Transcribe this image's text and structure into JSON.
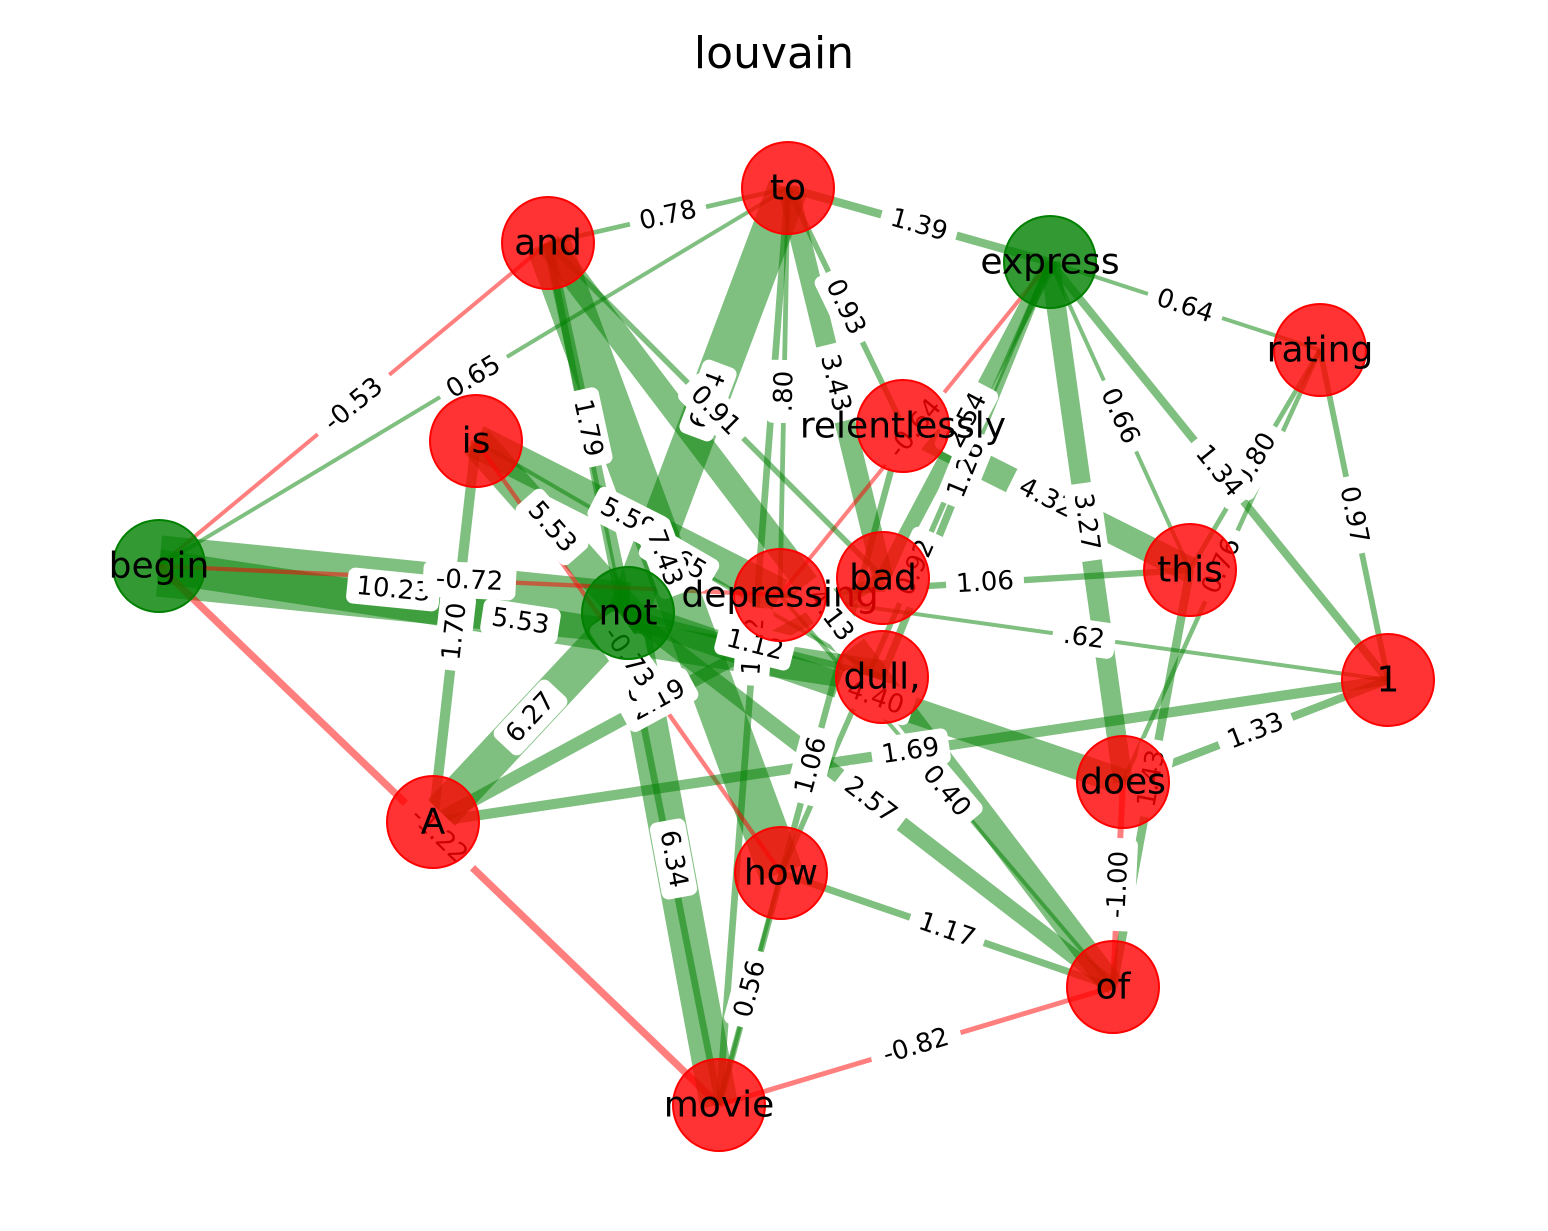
{
  "title": "louvain",
  "colors": {
    "positive": "#008000",
    "negative": "#ff0000",
    "label_bg": "#ffffff"
  },
  "nodes": [
    {
      "id": "to",
      "label": "to",
      "color": "#ff0000"
    },
    {
      "id": "and",
      "label": "and",
      "color": "#ff0000"
    },
    {
      "id": "express",
      "label": "express",
      "color": "#008000"
    },
    {
      "id": "rating",
      "label": "rating",
      "color": "#ff0000"
    },
    {
      "id": "is",
      "label": "is",
      "color": "#ff0000"
    },
    {
      "id": "relentlessly",
      "label": "relentlessly",
      "color": "#ff0000"
    },
    {
      "id": "begin",
      "label": "begin",
      "color": "#008000"
    },
    {
      "id": "not",
      "label": "not",
      "color": "#008000"
    },
    {
      "id": "depressing",
      "label": "depressing",
      "color": "#ff0000"
    },
    {
      "id": "bad",
      "label": "bad",
      "color": "#ff0000"
    },
    {
      "id": "this",
      "label": "this",
      "color": "#ff0000"
    },
    {
      "id": "1",
      "label": "1",
      "color": "#ff0000"
    },
    {
      "id": "dull,",
      "label": "dull,",
      "color": "#ff0000"
    },
    {
      "id": "A",
      "label": "A",
      "color": "#ff0000"
    },
    {
      "id": "does",
      "label": "does",
      "color": "#ff0000"
    },
    {
      "id": "how",
      "label": "how",
      "color": "#ff0000"
    },
    {
      "id": "of",
      "label": "of",
      "color": "#ff0000"
    },
    {
      "id": "movie",
      "label": "movie",
      "color": "#ff0000"
    }
  ],
  "edges": [
    {
      "source": "and",
      "target": "to",
      "weight": 0.78,
      "label": "0.78"
    },
    {
      "source": "to",
      "target": "express",
      "weight": 1.39,
      "label": "1.39"
    },
    {
      "source": "to",
      "target": "relentlessly",
      "weight": 0.93,
      "label": "0.93"
    },
    {
      "source": "express",
      "target": "rating",
      "weight": 0.64,
      "label": "0.64"
    },
    {
      "source": "begin",
      "target": "and",
      "weight": -0.53,
      "label": "-0.53"
    },
    {
      "source": "begin",
      "target": "to",
      "weight": 0.65,
      "label": "0.65"
    },
    {
      "source": "and",
      "target": "not",
      "weight": 1.79,
      "label": "1.79"
    },
    {
      "source": "is",
      "target": "not",
      "weight": 5.53,
      "label": "5.53"
    },
    {
      "source": "begin",
      "target": "not",
      "weight": 10.23,
      "label": "10.23"
    },
    {
      "source": "begin",
      "target": "dull,",
      "weight": 5.53,
      "label": "5.53"
    },
    {
      "source": "is",
      "target": "depressing",
      "weight": 5.59,
      "label": "5.59"
    },
    {
      "source": "is",
      "target": "A",
      "weight": 1.7,
      "label": "1.70"
    },
    {
      "source": "not",
      "target": "A",
      "weight": 6.27,
      "label": "6.27"
    },
    {
      "source": "begin",
      "target": "movie",
      "weight": -1.22,
      "label": "-1.22"
    },
    {
      "source": "A",
      "target": "bad",
      "weight": 2.19,
      "label": "2.19"
    },
    {
      "source": "not",
      "target": "movie",
      "weight": 6.34,
      "label": "6.34"
    },
    {
      "source": "how",
      "target": "movie",
      "weight": 0.56,
      "label": "0.56"
    },
    {
      "source": "movie",
      "target": "of",
      "weight": -0.82,
      "label": "-0.82"
    },
    {
      "source": "how",
      "target": "of",
      "weight": 1.17,
      "label": "1.17"
    },
    {
      "source": "does",
      "target": "of",
      "weight": -1.0,
      "label": "-1.00"
    },
    {
      "source": "this",
      "target": "of",
      "weight": 1.43,
      "label": "1.43"
    },
    {
      "source": "1",
      "target": "does",
      "weight": 1.33,
      "label": "1.33"
    },
    {
      "source": "rating",
      "target": "1",
      "weight": 0.97,
      "label": "0.97"
    },
    {
      "source": "rating",
      "target": "this",
      "weight": 0.8,
      "label": "0.80"
    },
    {
      "source": "rating",
      "target": "does",
      "weight": 0.76,
      "label": "0.76"
    },
    {
      "source": "express",
      "target": "this",
      "weight": 0.66,
      "label": "0.66"
    },
    {
      "source": "express",
      "target": "1",
      "weight": 1.34,
      "label": "1.34"
    },
    {
      "source": "express",
      "target": "dull,",
      "weight": 1.26,
      "label": "1.26"
    },
    {
      "source": "relentlessly",
      "target": "this",
      "weight": 4.32,
      "label": "4.32"
    },
    {
      "source": "express",
      "target": "bad",
      "weight": 2.54,
      "label": "2.54"
    },
    {
      "source": "to",
      "target": "bad",
      "weight": 3.43,
      "label": "3.43"
    },
    {
      "source": "to",
      "target": "depressing",
      "weight": 0.8,
      "label": ".80"
    },
    {
      "source": "to",
      "target": "not",
      "weight": 6.74,
      "label": "6.74"
    },
    {
      "source": "express",
      "target": "depressing",
      "weight": -0.64,
      "label": "-0.64"
    },
    {
      "source": "to",
      "target": "movie",
      "weight": 1.12,
      "label": "1.12"
    },
    {
      "source": "and",
      "target": "bad",
      "weight": 0.91,
      "label": "0.91"
    },
    {
      "source": "is",
      "target": "dull,",
      "weight": 0.65,
      "label": "0.65"
    },
    {
      "source": "and",
      "target": "movie",
      "weight": 1.13,
      "label": "1.13"
    },
    {
      "source": "depressing",
      "target": "this",
      "weight": 1.06,
      "label": "1.06"
    },
    {
      "source": "begin",
      "target": "depressing",
      "weight": -0.72,
      "label": "-0.72"
    },
    {
      "source": "express",
      "target": "how",
      "weight": 0.92,
      "label": "0.92"
    },
    {
      "source": "depressing",
      "target": "1",
      "weight": 0.62,
      "label": ".62"
    },
    {
      "source": "express",
      "target": "does",
      "weight": 3.27,
      "label": "3.27"
    },
    {
      "source": "not",
      "target": "does",
      "weight": 4.4,
      "label": "4.40"
    },
    {
      "source": "depressing",
      "target": "of",
      "weight": 0.4,
      "label": "0.40"
    },
    {
      "source": "not",
      "target": "dull,",
      "weight": 1.12,
      "label": "1.12"
    },
    {
      "source": "and",
      "target": "how",
      "weight": 7.43,
      "label": "7.43"
    },
    {
      "source": "is",
      "target": "how",
      "weight": -0.73,
      "label": "-0.73"
    },
    {
      "source": "relentlessly",
      "target": "movie",
      "weight": 1.06,
      "label": "1.06"
    },
    {
      "source": "A",
      "target": "1",
      "weight": 1.69,
      "label": "1.69"
    },
    {
      "source": "and",
      "target": "of",
      "weight": 4.13,
      "label": "4.13"
    },
    {
      "source": "not",
      "target": "of",
      "weight": 2.57,
      "label": "2.57"
    }
  ]
}
